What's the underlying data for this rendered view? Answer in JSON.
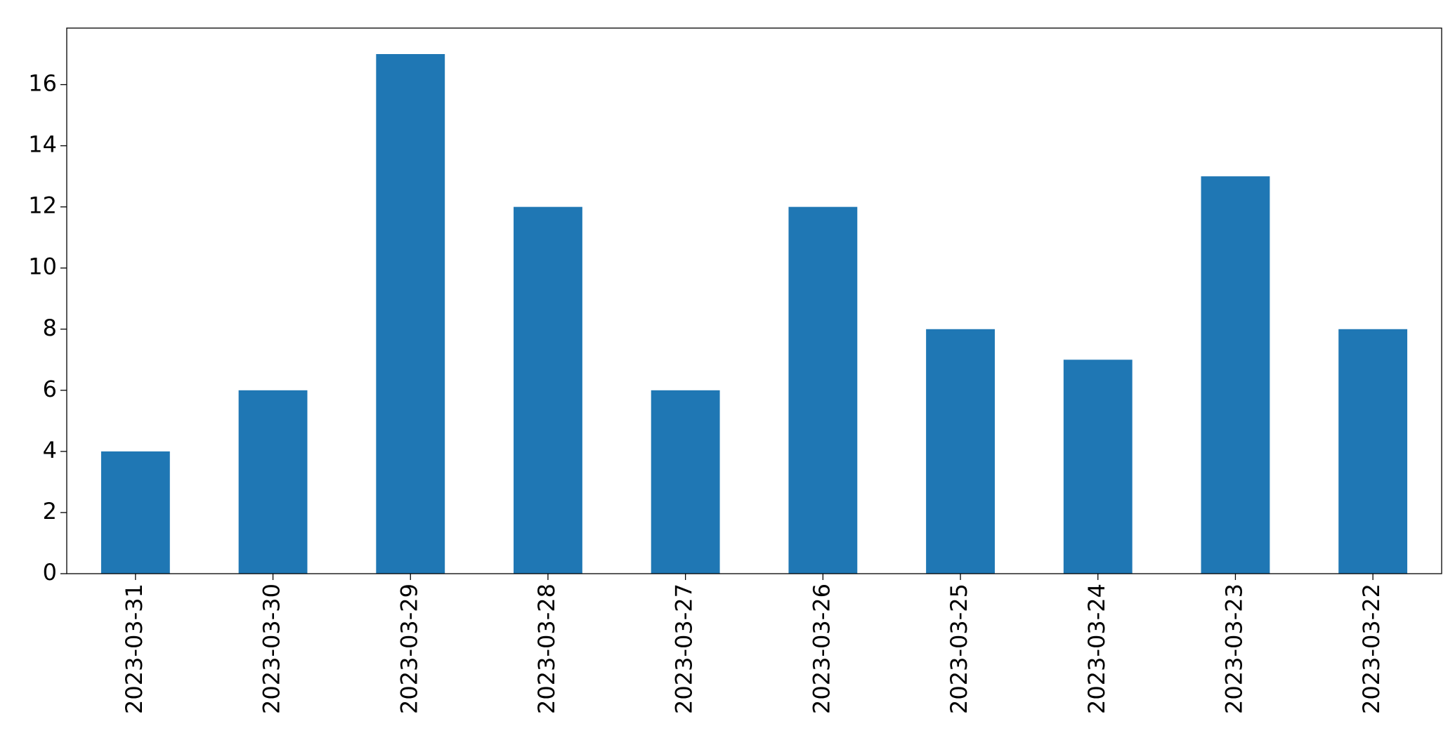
{
  "chart_data": {
    "type": "bar",
    "categories": [
      "2023-03-31",
      "2023-03-30",
      "2023-03-29",
      "2023-03-28",
      "2023-03-27",
      "2023-03-26",
      "2023-03-25",
      "2023-03-24",
      "2023-03-23",
      "2023-03-22"
    ],
    "values": [
      4,
      6,
      17,
      12,
      6,
      12,
      8,
      7,
      13,
      8
    ],
    "color": "#1f77b4",
    "ylim": [
      0,
      17.85
    ],
    "yticks": [
      0,
      2,
      4,
      6,
      8,
      10,
      12,
      14,
      16
    ],
    "grid": false
  }
}
